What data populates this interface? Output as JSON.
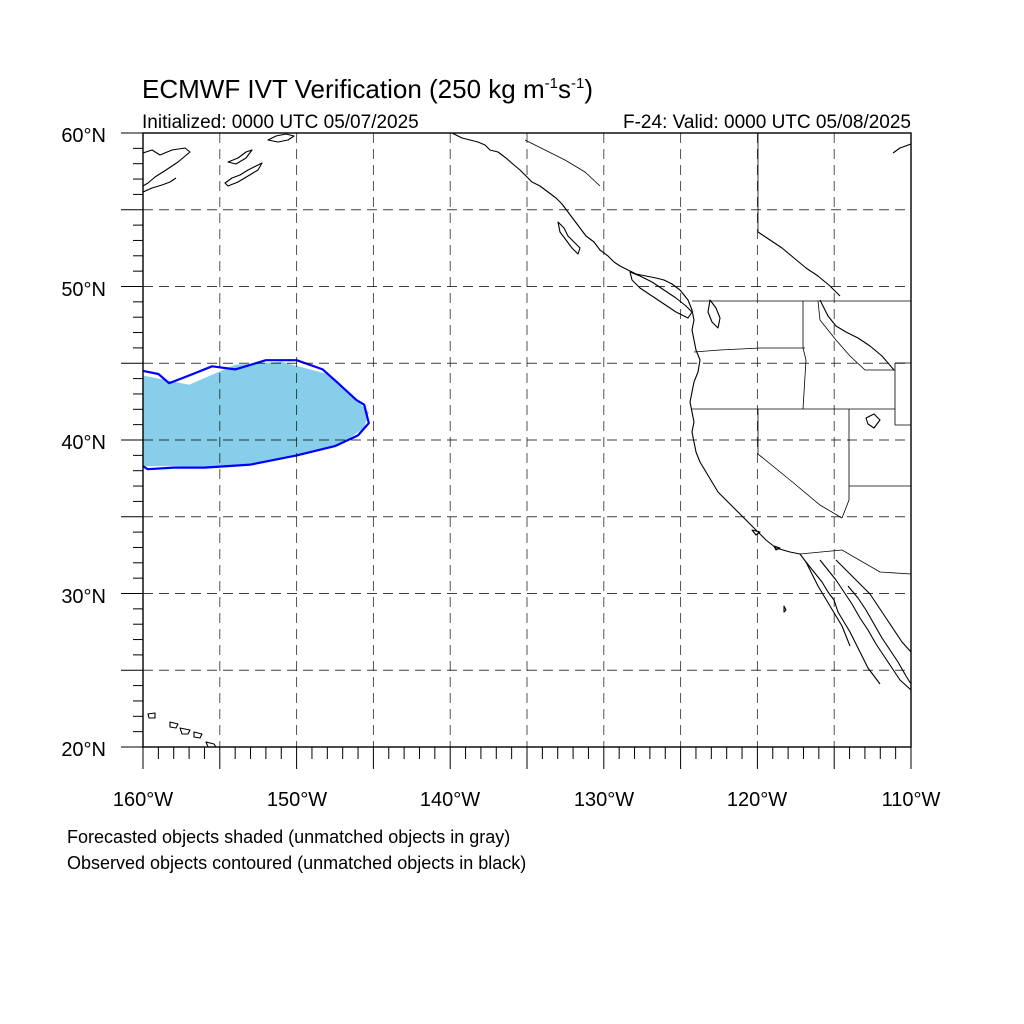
{
  "title": {
    "main": "ECMWF IVT Verification (250 kg m",
    "sup1": "-1",
    "mid": "s",
    "sup2": "-1",
    "close": ")"
  },
  "subtitle_left": "Initialized: 0000 UTC 05/07/2025",
  "subtitle_right": "F-24: Valid: 0000 UTC 05/08/2025",
  "lat_labels": [
    "60°N",
    "50°N",
    "40°N",
    "30°N",
    "20°N"
  ],
  "lon_labels": [
    "160°W",
    "150°W",
    "140°W",
    "130°W",
    "120°W",
    "110°W"
  ],
  "notes": [
    "Forecasted objects shaded (unmatched objects in gray)",
    "Observed objects contoured (unmatched objects in black)"
  ],
  "map_extent": {
    "lon": [
      -160,
      -110
    ],
    "lat": [
      20,
      60
    ]
  },
  "colors": {
    "forecast_fill": "#87ceeb",
    "observed_contour": "#0000ff",
    "coastline": "#000000",
    "grid": "#000000"
  },
  "objects": {
    "forecast_shaded_matched": {
      "lon": [
        -160,
        -157,
        -154,
        -151,
        -148,
        -146.5,
        -145.3,
        -145.6,
        -147,
        -150,
        -153,
        -156,
        -158,
        -160
      ],
      "lat": [
        44.2,
        43.6,
        44.9,
        45.1,
        44.3,
        43.0,
        41.8,
        40.8,
        39.8,
        39.0,
        38.4,
        38.2,
        38.3,
        38.3
      ]
    },
    "observed_contour_matched": {
      "lon": [
        -160,
        -159,
        -158.3,
        -157,
        -155.5,
        -154,
        -152,
        -150,
        -148.3,
        -147.4,
        -146.1,
        -145.6,
        -145.3,
        -146.0,
        -147.5,
        -150,
        -153,
        -156,
        -158,
        -159.7,
        -160
      ],
      "lat": [
        44.5,
        44.3,
        43.7,
        44.2,
        44.8,
        44.6,
        45.2,
        45.2,
        44.6,
        43.8,
        42.6,
        42.3,
        41.1,
        40.3,
        39.6,
        39.0,
        38.4,
        38.2,
        38.2,
        38.1,
        38.3
      ]
    }
  }
}
